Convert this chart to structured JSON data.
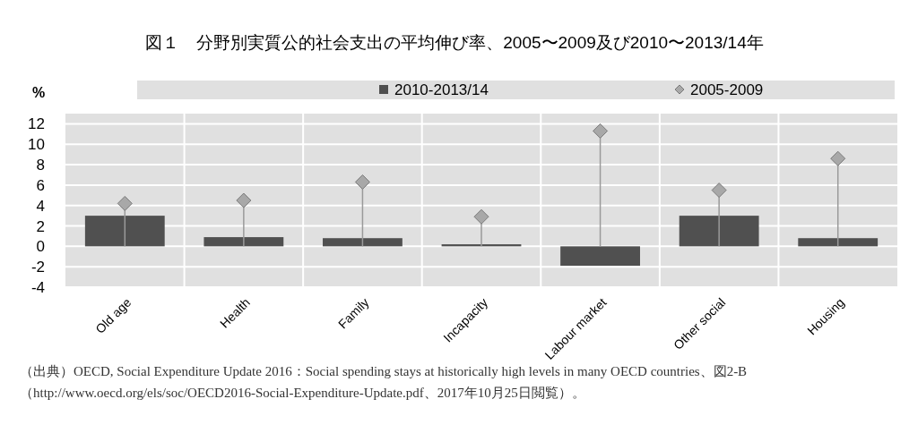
{
  "chart_data": {
    "type": "bar",
    "title": "図１　分野別実質公的社会支出の平均伸び率、2005〜2009及び2010〜2013/14年",
    "ylabel": "%",
    "categories": [
      "Old age",
      "Health",
      "Family",
      "Incapacity",
      "Labour market",
      "Other social",
      "Housing"
    ],
    "series": [
      {
        "name": "2010-2013/14",
        "color": "#505050",
        "values": [
          3.0,
          0.9,
          0.8,
          0.2,
          -1.9,
          3.0,
          0.8
        ]
      },
      {
        "name": "2005-2009",
        "type": "lollipop",
        "color": "#a8a8a8",
        "marker": "diamond",
        "values": [
          4.2,
          4.5,
          6.3,
          2.9,
          11.3,
          5.5,
          8.6
        ]
      }
    ],
    "ylim": [
      -4,
      13
    ],
    "yticks": [
      -4,
      -2,
      0,
      2,
      4,
      6,
      8,
      10,
      12
    ],
    "grid": true,
    "legend": "top",
    "annotations": [
      "（出典）OECD, Social Expenditure Update 2016：Social spending stays at historically high levels in many OECD countries、図2-B（http://www.oecd.org/els/soc/OECD2016-Social-Expenditure-Update.pdf、2017年10月25日閲覧）。"
    ]
  }
}
